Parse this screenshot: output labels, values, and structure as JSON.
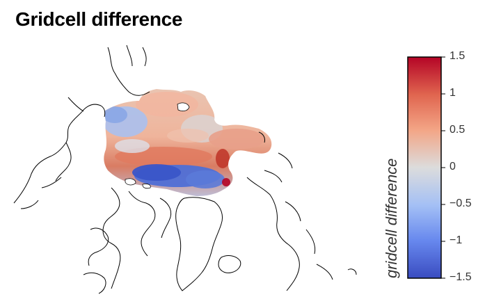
{
  "title": "Gridcell difference",
  "colorbar": {
    "label": "gridcell difference",
    "ticks": [
      {
        "value": 1.5,
        "label": "1.5"
      },
      {
        "value": 1,
        "label": "1"
      },
      {
        "value": 0.5,
        "label": "0.5"
      },
      {
        "value": 0,
        "label": "0"
      },
      {
        "value": -0.5,
        "label": "−0.5"
      },
      {
        "value": -1,
        "label": "−1"
      },
      {
        "value": -1.5,
        "label": "−1.5"
      }
    ],
    "range": [
      -1.5,
      1.5
    ],
    "colors": {
      "low": "#3a4cc0",
      "mid": "#dcdcdc",
      "high": "#b40426"
    }
  }
}
